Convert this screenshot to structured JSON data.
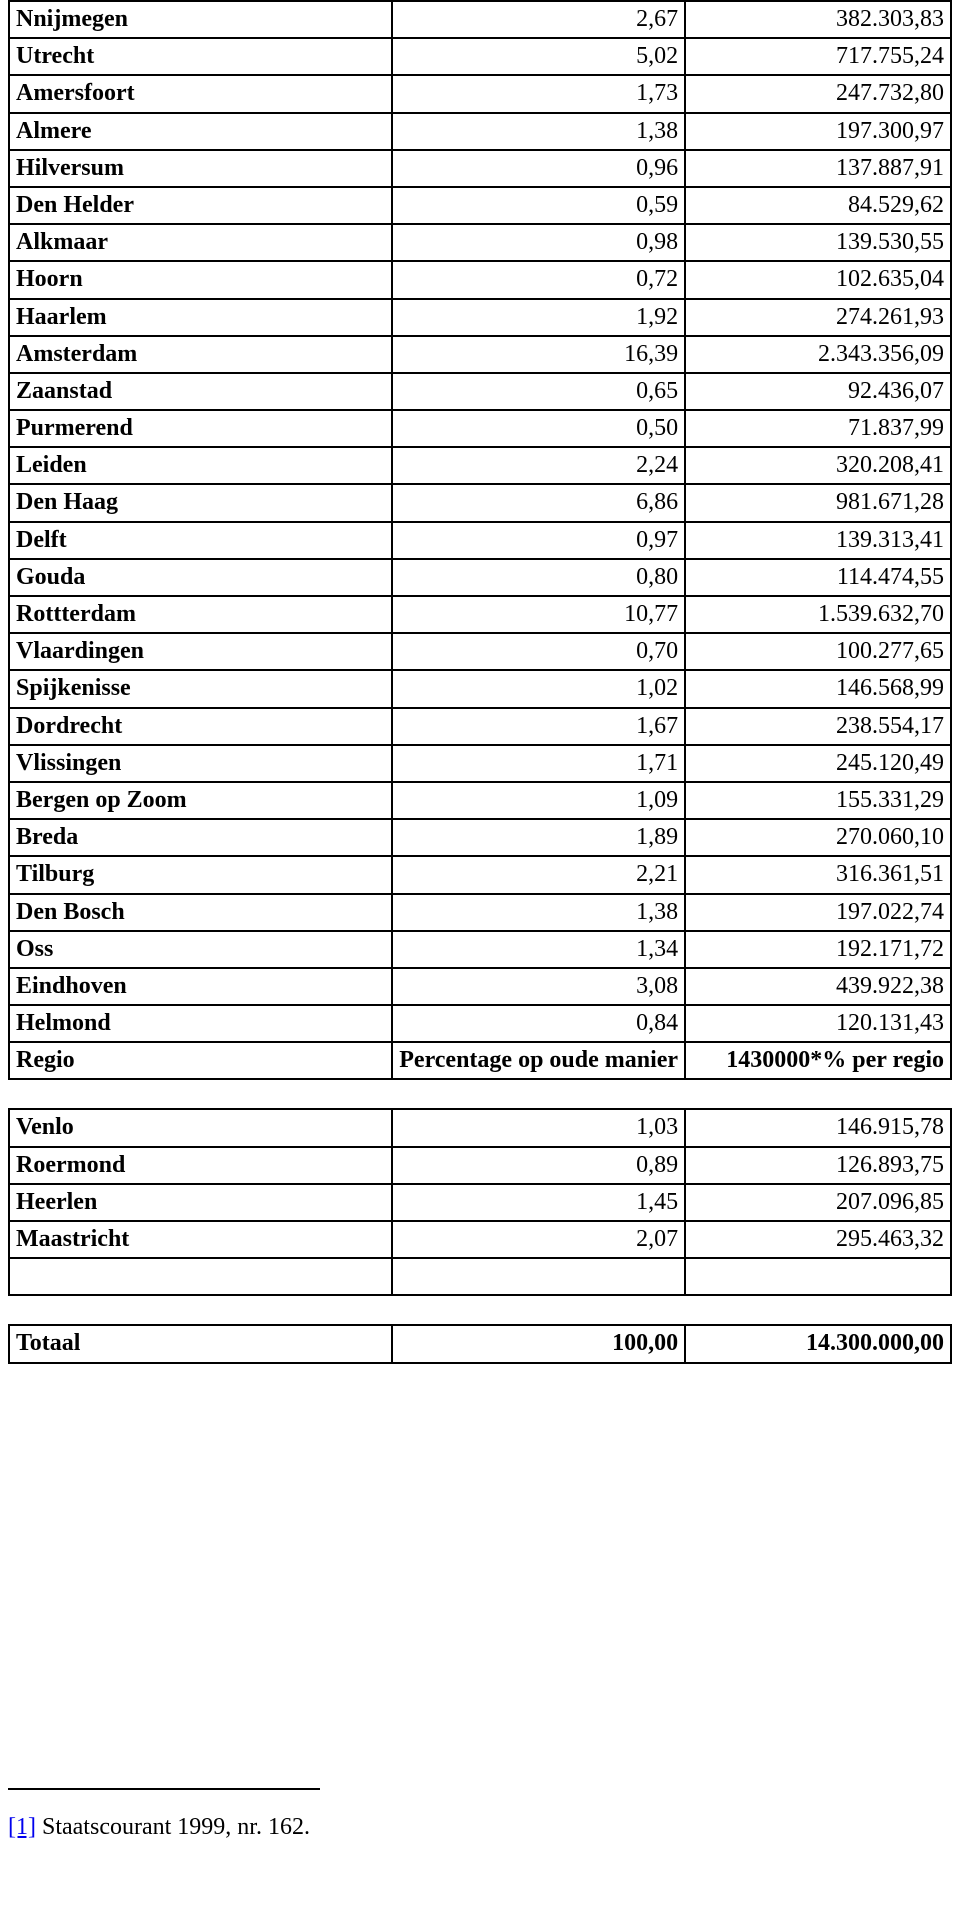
{
  "rows1": [
    {
      "name": "Nnijmegen",
      "pct": "2,67",
      "val": "382.303,83"
    },
    {
      "name": "Utrecht",
      "pct": "5,02",
      "val": "717.755,24"
    },
    {
      "name": "Amersfoort",
      "pct": "1,73",
      "val": "247.732,80"
    },
    {
      "name": "Almere",
      "pct": "1,38",
      "val": "197.300,97"
    },
    {
      "name": "Hilversum",
      "pct": "0,96",
      "val": "137.887,91"
    },
    {
      "name": "Den Helder",
      "pct": "0,59",
      "val": "84.529,62"
    },
    {
      "name": "Alkmaar",
      "pct": "0,98",
      "val": "139.530,55"
    },
    {
      "name": "Hoorn",
      "pct": "0,72",
      "val": "102.635,04"
    },
    {
      "name": "Haarlem",
      "pct": "1,92",
      "val": "274.261,93"
    },
    {
      "name": "Amsterdam",
      "pct": "16,39",
      "val": "2.343.356,09"
    },
    {
      "name": "Zaanstad",
      "pct": "0,65",
      "val": "92.436,07"
    },
    {
      "name": "Purmerend",
      "pct": "0,50",
      "val": "71.837,99"
    },
    {
      "name": "Leiden",
      "pct": "2,24",
      "val": "320.208,41"
    },
    {
      "name": "Den Haag",
      "pct": "6,86",
      "val": "981.671,28"
    },
    {
      "name": "Delft",
      "pct": "0,97",
      "val": "139.313,41"
    },
    {
      "name": "Gouda",
      "pct": "0,80",
      "val": "114.474,55"
    },
    {
      "name": "Rottterdam",
      "pct": "10,77",
      "val": "1.539.632,70"
    },
    {
      "name": "Vlaardingen",
      "pct": "0,70",
      "val": "100.277,65"
    },
    {
      "name": "Spijkenisse",
      "pct": "1,02",
      "val": "146.568,99"
    },
    {
      "name": "Dordrecht",
      "pct": "1,67",
      "val": "238.554,17"
    },
    {
      "name": "Vlissingen",
      "pct": "1,71",
      "val": "245.120,49"
    },
    {
      "name": "Bergen op Zoom",
      "pct": "1,09",
      "val": "155.331,29"
    },
    {
      "name": "Breda",
      "pct": "1,89",
      "val": "270.060,10"
    },
    {
      "name": "Tilburg",
      "pct": "2,21",
      "val": "316.361,51"
    },
    {
      "name": "Den Bosch",
      "pct": "1,38",
      "val": "197.022,74"
    },
    {
      "name": "Oss",
      "pct": "1,34",
      "val": "192.171,72"
    },
    {
      "name": "Eindhoven",
      "pct": "3,08",
      "val": "439.922,38"
    },
    {
      "name": "Helmond",
      "pct": "0,84",
      "val": "120.131,43"
    }
  ],
  "header": {
    "name": "Regio",
    "pct": "Percentage op oude manier",
    "val": "1430000*% per regio"
  },
  "rows2": [
    {
      "name": "Venlo",
      "pct": "1,03",
      "val": "146.915,78"
    },
    {
      "name": "Roermond",
      "pct": "0,89",
      "val": "126.893,75"
    },
    {
      "name": "Heerlen",
      "pct": "1,45",
      "val": "207.096,85"
    },
    {
      "name": "Maastricht",
      "pct": "2,07",
      "val": "295.463,32"
    }
  ],
  "total": {
    "name": "Totaal",
    "pct": "100,00",
    "val": "14.300.000,00"
  },
  "footnote": {
    "link_text": "[1]",
    "text": " Staatscourant 1999, nr. 162."
  }
}
